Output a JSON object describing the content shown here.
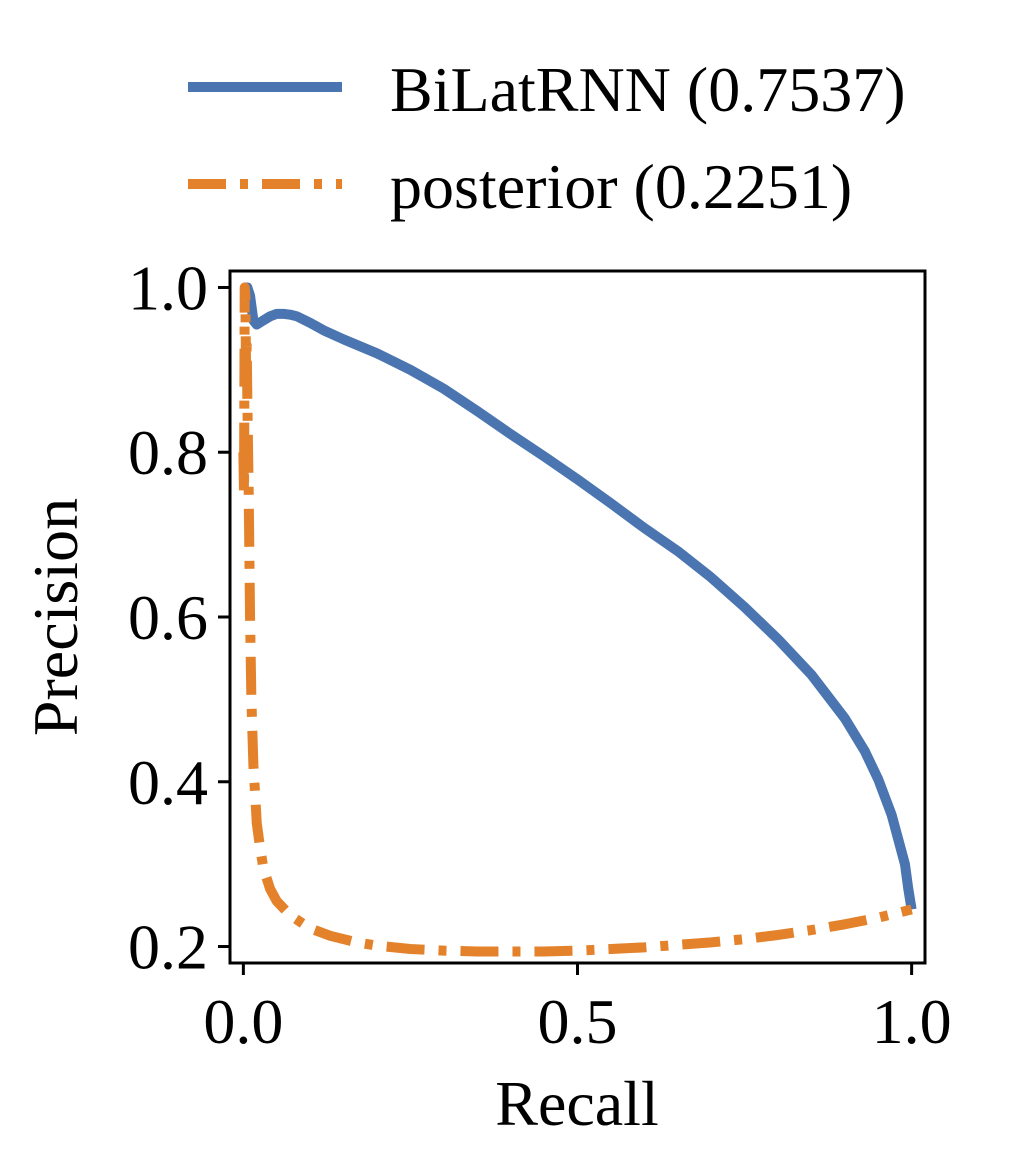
{
  "chart_data": {
    "type": "line",
    "xlabel": "Recall",
    "ylabel": "Precision",
    "xlim": [
      -0.02,
      1.02
    ],
    "ylim": [
      0.18,
      1.02
    ],
    "xticks": [
      {
        "value": 0.0,
        "label": "0.0"
      },
      {
        "value": 0.5,
        "label": "0.5"
      },
      {
        "value": 1.0,
        "label": "1.0"
      }
    ],
    "yticks": [
      {
        "value": 0.2,
        "label": "0.2"
      },
      {
        "value": 0.4,
        "label": "0.4"
      },
      {
        "value": 0.6,
        "label": "0.6"
      },
      {
        "value": 0.8,
        "label": "0.8"
      },
      {
        "value": 1.0,
        "label": "1.0"
      }
    ],
    "grid": false,
    "legend_placement": "above",
    "series": [
      {
        "name": "BiLatRNN (0.7537)",
        "color": "#4a75b0",
        "line_style": "solid",
        "x": [
          0.0,
          0.003,
          0.006,
          0.01,
          0.015,
          0.02,
          0.03,
          0.04,
          0.05,
          0.06,
          0.07,
          0.08,
          0.1,
          0.12,
          0.15,
          0.2,
          0.25,
          0.3,
          0.35,
          0.4,
          0.45,
          0.5,
          0.55,
          0.6,
          0.65,
          0.7,
          0.75,
          0.8,
          0.85,
          0.9,
          0.93,
          0.95,
          0.97,
          0.98,
          0.99,
          0.995,
          1.0
        ],
        "y": [
          1.0,
          1.0,
          1.0,
          0.99,
          0.96,
          0.955,
          0.96,
          0.965,
          0.968,
          0.968,
          0.967,
          0.965,
          0.957,
          0.948,
          0.937,
          0.92,
          0.9,
          0.877,
          0.85,
          0.822,
          0.795,
          0.767,
          0.738,
          0.708,
          0.68,
          0.648,
          0.612,
          0.573,
          0.53,
          0.477,
          0.437,
          0.403,
          0.36,
          0.33,
          0.3,
          0.27,
          0.245
        ]
      },
      {
        "name": "posterior (0.2251)",
        "color": "#e3822a",
        "line_style": "dashdot",
        "x": [
          0.0,
          0.001,
          0.002,
          0.003,
          0.004,
          0.005,
          0.006,
          0.008,
          0.01,
          0.012,
          0.015,
          0.018,
          0.02,
          0.025,
          0.03,
          0.04,
          0.05,
          0.07,
          0.1,
          0.13,
          0.17,
          0.2,
          0.25,
          0.3,
          0.35,
          0.4,
          0.45,
          0.5,
          0.55,
          0.6,
          0.65,
          0.7,
          0.75,
          0.8,
          0.85,
          0.9,
          0.95,
          1.0
        ],
        "y": [
          0.8,
          0.75,
          1.0,
          0.99,
          0.9,
          0.93,
          0.86,
          0.75,
          0.6,
          0.5,
          0.42,
          0.38,
          0.35,
          0.32,
          0.295,
          0.27,
          0.255,
          0.238,
          0.222,
          0.213,
          0.205,
          0.201,
          0.197,
          0.195,
          0.194,
          0.194,
          0.194,
          0.195,
          0.197,
          0.199,
          0.202,
          0.205,
          0.209,
          0.214,
          0.22,
          0.227,
          0.235,
          0.245
        ]
      }
    ]
  }
}
